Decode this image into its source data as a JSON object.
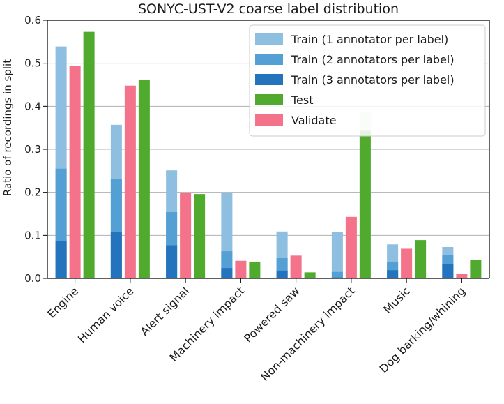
{
  "chart_data": {
    "type": "bar",
    "title": "SONYC-UST-V2 coarse label distribution",
    "xlabel": "",
    "ylabel": "Ratio of recordings in split",
    "ylim": [
      0,
      0.6
    ],
    "yticks": [
      "0.0",
      "0.1",
      "0.2",
      "0.3",
      "0.4",
      "0.5",
      "0.6"
    ],
    "grid": "horizontal",
    "legend_position": "top-right",
    "categories": [
      "Engine",
      "Human voice",
      "Alert signal",
      "Machinery impact",
      "Powered saw",
      "Non-machinery impact",
      "Music",
      "Dog barking/whining"
    ],
    "series": [
      {
        "name": "Train (1 annotator per label)",
        "color": "#8ebfe0",
        "values": [
          0.539,
          0.357,
          0.251,
          0.199,
          0.109,
          0.108,
          0.079,
          0.073
        ]
      },
      {
        "name": "Train (2 annotators per label)",
        "color": "#549fd3",
        "values": [
          0.255,
          0.231,
          0.154,
          0.063,
          0.047,
          0.015,
          0.039,
          0.055
        ]
      },
      {
        "name": "Train (3 annotators per label)",
        "color": "#2474bd",
        "values": [
          0.086,
          0.107,
          0.077,
          0.024,
          0.018,
          0.002,
          0.019,
          0.034
        ]
      },
      {
        "name": "Test",
        "color": "#4faa2e",
        "values": [
          0.573,
          0.462,
          0.196,
          0.039,
          0.014,
          0.343,
          0.089,
          0.043
        ]
      },
      {
        "name": "Validate",
        "color": "#f4728a",
        "values": [
          0.494,
          0.448,
          0.199,
          0.041,
          0.053,
          0.143,
          0.069,
          0.011
        ]
      }
    ],
    "test_faded_overlay": {
      "category": "Non-machinery impact",
      "value": 0.388,
      "color": "#d8ecd0"
    },
    "legend_order": [
      "Train (1 annotator per label)",
      "Train (2 annotators per label)",
      "Train (3 annotators per label)",
      "Test",
      "Validate"
    ]
  }
}
